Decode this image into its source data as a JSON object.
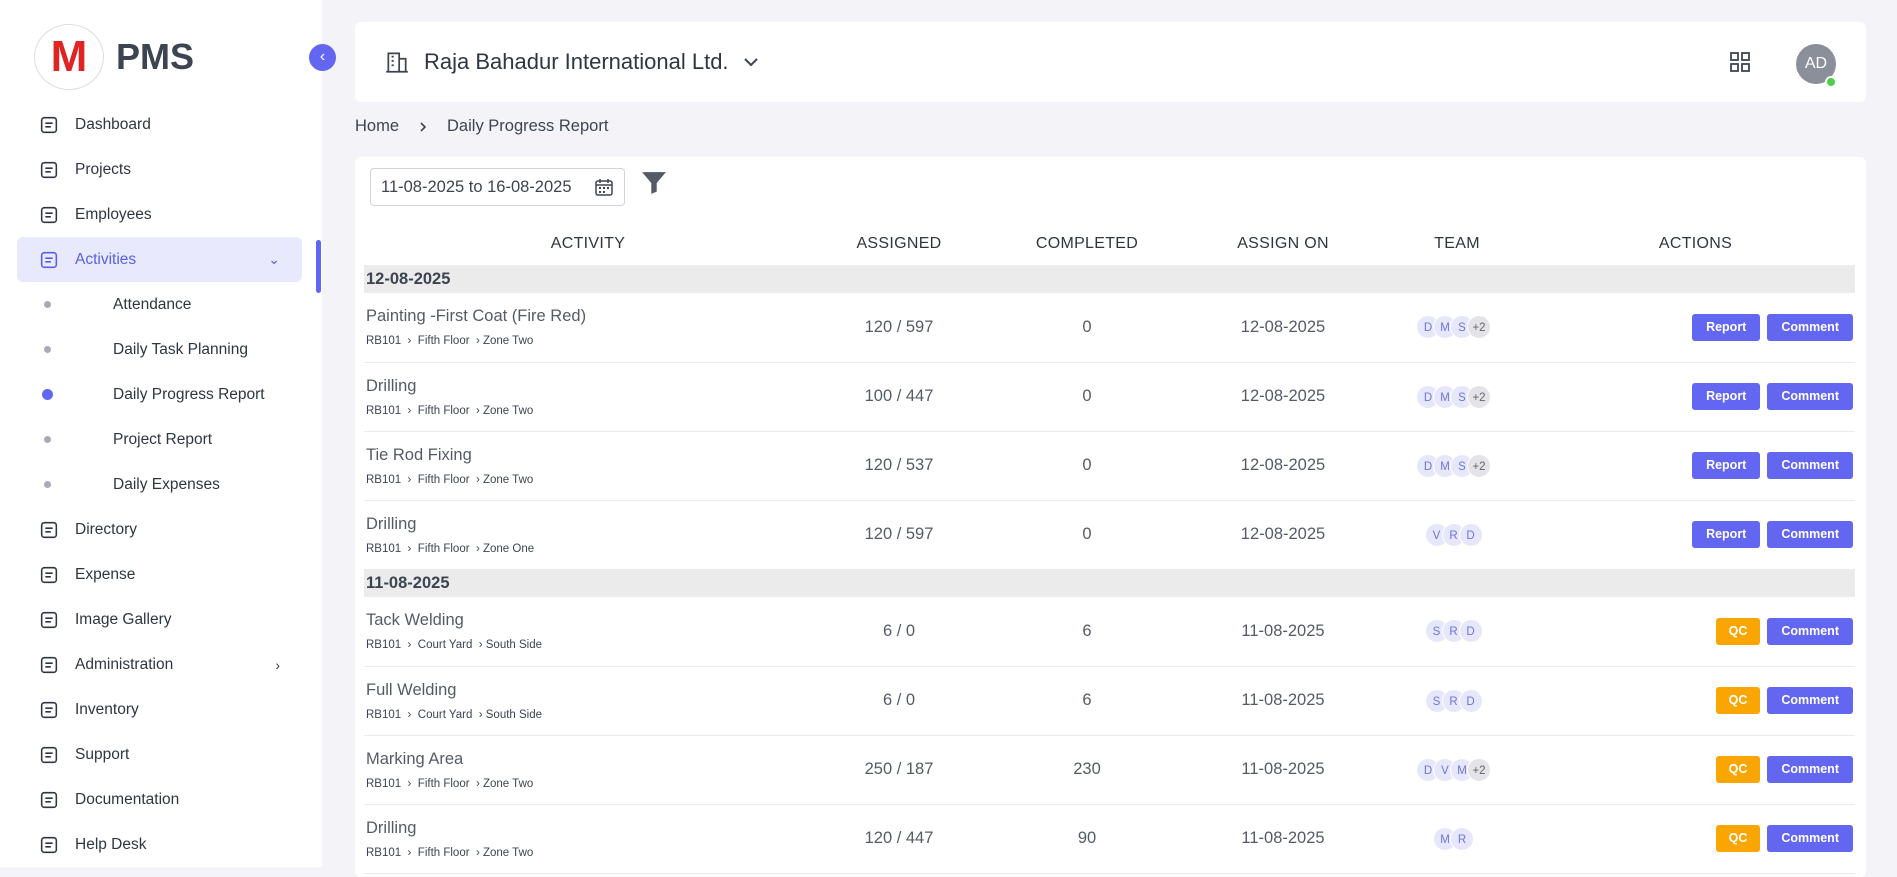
{
  "brand": {
    "logo": "M",
    "name": "PMS"
  },
  "sidebar": {
    "items": [
      {
        "label": "Dashboard"
      },
      {
        "label": "Projects"
      },
      {
        "label": "Employees"
      },
      {
        "label": "Activities",
        "expanded": true,
        "children": [
          {
            "label": "Attendance"
          },
          {
            "label": "Daily Task Planning"
          },
          {
            "label": "Daily Progress Report",
            "active": true
          },
          {
            "label": "Project Report"
          },
          {
            "label": "Daily Expenses"
          }
        ]
      },
      {
        "label": "Directory"
      },
      {
        "label": "Expense"
      },
      {
        "label": "Image Gallery"
      },
      {
        "label": "Administration",
        "submenu": true
      },
      {
        "label": "Inventory"
      },
      {
        "label": "Support"
      },
      {
        "label": "Documentation"
      },
      {
        "label": "Help Desk"
      }
    ]
  },
  "header": {
    "company": "Raja Bahadur International Ltd.",
    "avatar": "AD"
  },
  "breadcrumb": [
    "Home",
    "Daily Progress Report"
  ],
  "filter": {
    "date_range": "11-08-2025 to 16-08-2025"
  },
  "table": {
    "columns": [
      "ACTIVITY",
      "ASSIGNED",
      "COMPLETED",
      "ASSIGN ON",
      "TEAM",
      "ACTIONS"
    ],
    "groups": [
      {
        "date": "12-08-2025",
        "rows": [
          {
            "activity": "Painting -First Coat (Fire Red)",
            "path": [
              "RB101",
              "Fifth Floor",
              "Zone Two"
            ],
            "assigned": "120 / 597",
            "completed": 0,
            "assign_on": "12-08-2025",
            "team": [
              "D",
              "M",
              "S",
              "+2"
            ],
            "actions": [
              "Report",
              "Comment"
            ]
          },
          {
            "activity": "Drilling",
            "path": [
              "RB101",
              "Fifth Floor",
              "Zone Two"
            ],
            "assigned": "100 / 447",
            "completed": 0,
            "assign_on": "12-08-2025",
            "team": [
              "D",
              "M",
              "S",
              "+2"
            ],
            "actions": [
              "Report",
              "Comment"
            ]
          },
          {
            "activity": "Tie Rod Fixing",
            "path": [
              "RB101",
              "Fifth Floor",
              "Zone Two"
            ],
            "assigned": "120 / 537",
            "completed": 0,
            "assign_on": "12-08-2025",
            "team": [
              "D",
              "M",
              "S",
              "+2"
            ],
            "actions": [
              "Report",
              "Comment"
            ]
          },
          {
            "activity": "Drilling",
            "path": [
              "RB101",
              "Fifth Floor",
              "Zone One"
            ],
            "assigned": "120 / 597",
            "completed": 0,
            "assign_on": "12-08-2025",
            "team": [
              "V",
              "R",
              "D"
            ],
            "actions": [
              "Report",
              "Comment"
            ]
          }
        ]
      },
      {
        "date": "11-08-2025",
        "rows": [
          {
            "activity": "Tack Welding",
            "path": [
              "RB101",
              "Court Yard",
              "South Side"
            ],
            "assigned": "6 / 0",
            "completed": 6,
            "assign_on": "11-08-2025",
            "team": [
              "S",
              "R",
              "D"
            ],
            "actions": [
              "QC",
              "Comment"
            ]
          },
          {
            "activity": "Full Welding",
            "path": [
              "RB101",
              "Court Yard",
              "South Side"
            ],
            "assigned": "6 / 0",
            "completed": 6,
            "assign_on": "11-08-2025",
            "team": [
              "S",
              "R",
              "D"
            ],
            "actions": [
              "QC",
              "Comment"
            ]
          },
          {
            "activity": "Marking Area",
            "path": [
              "RB101",
              "Fifth Floor",
              "Zone Two"
            ],
            "assigned": "250 / 187",
            "completed": 230,
            "assign_on": "11-08-2025",
            "team": [
              "D",
              "V",
              "M",
              "+2"
            ],
            "actions": [
              "QC",
              "Comment"
            ]
          },
          {
            "activity": "Drilling",
            "path": [
              "RB101",
              "Fifth Floor",
              "Zone Two"
            ],
            "assigned": "120 / 447",
            "completed": 90,
            "assign_on": "11-08-2025",
            "team": [
              "M",
              "R"
            ],
            "actions": [
              "QC",
              "Comment"
            ]
          }
        ]
      }
    ]
  }
}
